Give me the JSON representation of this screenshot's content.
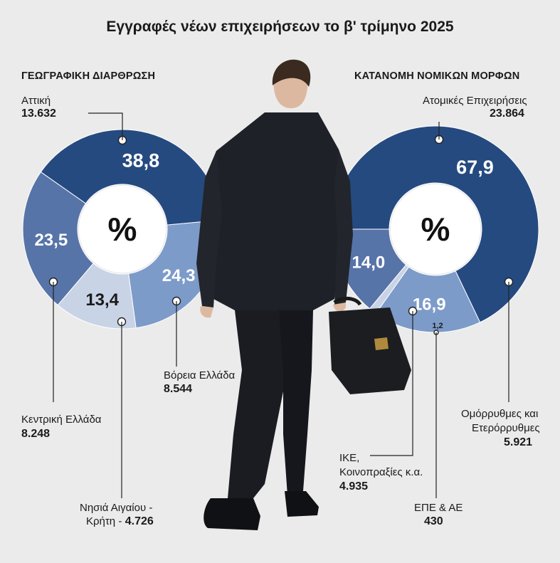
{
  "title": "Εγγραφές νέων επιχειρήσεων το β' τρίμηνο 2025",
  "chart_data": [
    {
      "type": "pie",
      "title": "ΓΕΩΓΡΑΦΙΚΗ ΔΙΑΡΘΡΩΣΗ",
      "center_label": "%",
      "slices": [
        {
          "label": "Αττική",
          "percent": 38.8,
          "percent_text": "38,8",
          "count": 13632,
          "count_text": "13.632",
          "color": "#254a80"
        },
        {
          "label": "Βόρεια Ελλάδα",
          "percent": 24.3,
          "percent_text": "24,3",
          "count": 8544,
          "count_text": "8.544",
          "color": "#7d9bc9"
        },
        {
          "label": "Νησιά Αιγαίου - Κρήτη",
          "percent": 13.4,
          "percent_text": "13,4",
          "count": 4726,
          "count_text": "4.726",
          "color": "#c9d3e6"
        },
        {
          "label": "Κεντρική Ελλάδα",
          "percent": 23.5,
          "percent_text": "23,5",
          "count": 8248,
          "count_text": "8.248",
          "color": "#5774a8"
        }
      ]
    },
    {
      "type": "pie",
      "title": "ΚΑΤΑΝΟΜΗ ΝΟΜΙΚΩΝ ΜΟΡΦΩΝ",
      "center_label": "%",
      "slices": [
        {
          "label": "Ατομικές Επιχειρήσεις",
          "percent": 67.9,
          "percent_text": "67,9",
          "count": 23864,
          "count_text": "23.864",
          "color": "#254a80"
        },
        {
          "label": "Ομόρρυθμες και Ετερόρρυθμες",
          "percent": 16.9,
          "percent_text": "16,9",
          "count": 5921,
          "count_text": "5.921",
          "color": "#7d9bc9"
        },
        {
          "label": "ΕΠΕ & ΑΕ",
          "percent": 1.2,
          "percent_text": "1,2",
          "count": 430,
          "count_text": "430",
          "color": "#c9d3e6"
        },
        {
          "label": "ΙΚΕ, Κοινοπραξίες κ.α.",
          "percent": 14.0,
          "percent_text": "14,0",
          "count": 4935,
          "count_text": "4.935",
          "color": "#5774a8"
        }
      ]
    }
  ],
  "labels": {
    "attica": "Αττική",
    "attica_val": "13.632",
    "north": "Βόρεια Ελλάδα",
    "north_val": "8.544",
    "central": "Κεντρική Ελλάδα",
    "central_val": "8.248",
    "islands_1": "Νησιά Αιγαίου -",
    "islands_2": "Κρήτη -",
    "islands_val": "4.726",
    "sole": "Ατομικές Επιχειρήσεις",
    "sole_val": "23.864",
    "partner_1": "Ομόρρυθμες και",
    "partner_2": "Ετερόρρυθμες",
    "partner_val": "5.921",
    "ike_1": "ΙΚΕ,",
    "ike_2": "Κοινοπραξίες κ.α.",
    "ike_val": "4.935",
    "epe": "ΕΠΕ & ΑΕ",
    "epe_val": "430"
  }
}
